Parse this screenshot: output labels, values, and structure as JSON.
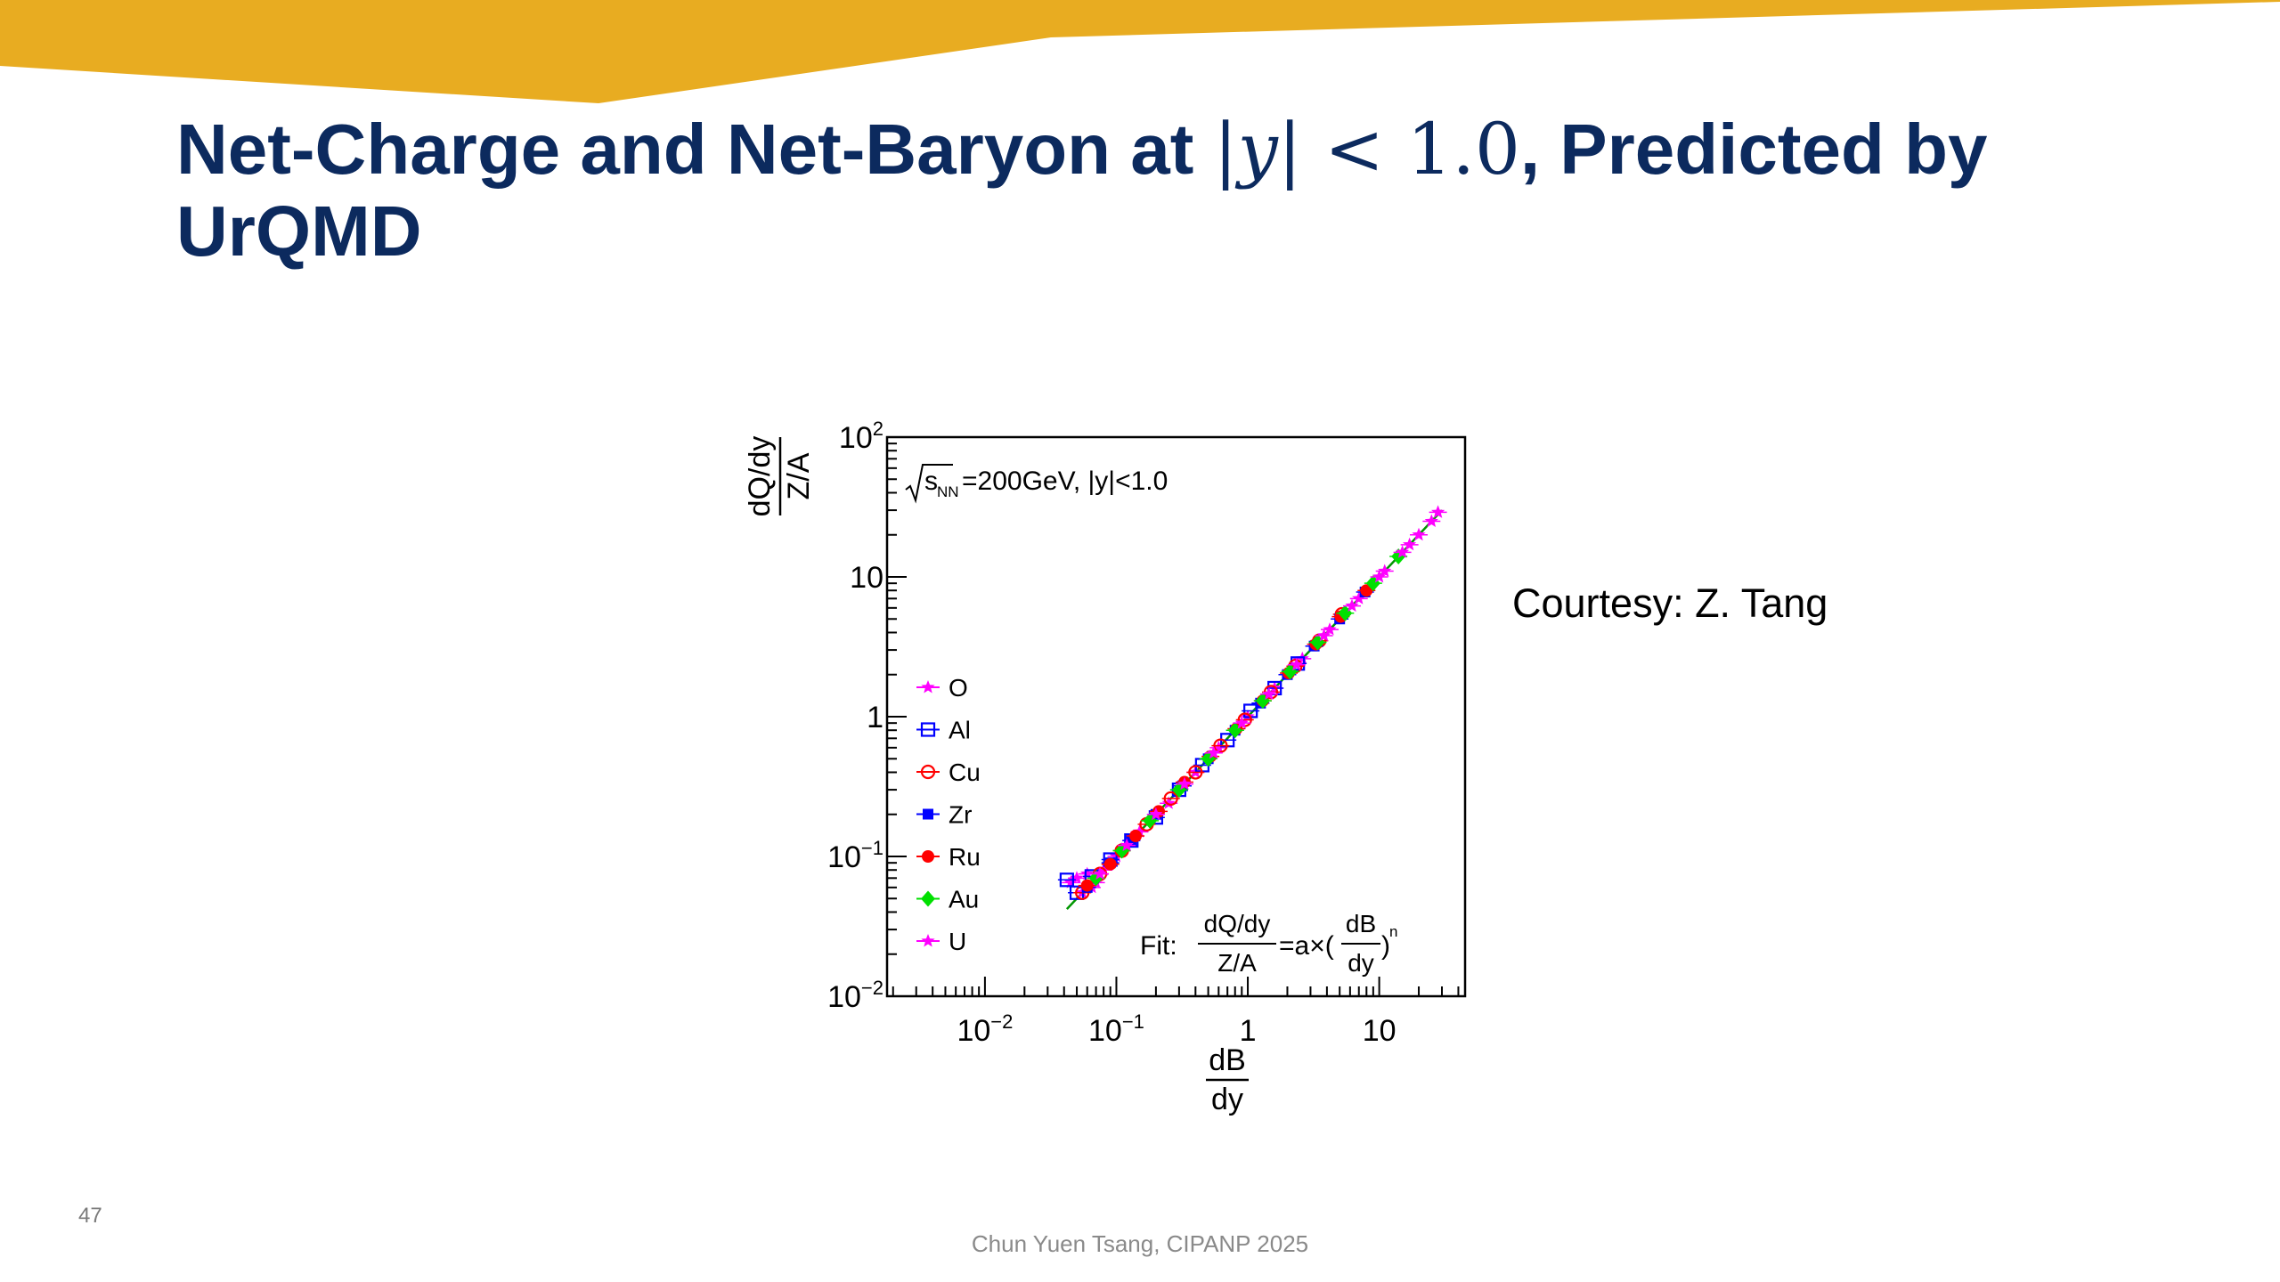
{
  "slide": {
    "title_part1": "Net-Charge and Net-Baryon at ",
    "title_math_open": "|",
    "title_math_var": "y",
    "title_math_close": "| < 1.0",
    "title_part2": ", Predicted by UrQMD",
    "courtesy": "Courtesy: Z. Tang",
    "page_number": "47",
    "footer": "Chun Yuen Tsang, CIPANP 2025",
    "banner_color": "#e8ac21",
    "title_color": "#0c2a5e"
  },
  "chart_data": {
    "type": "scatter",
    "x_scale": "log",
    "y_scale": "log",
    "xlim": [
      0.0018,
      45
    ],
    "ylim": [
      0.01,
      100
    ],
    "xlabel_num": "dB",
    "xlabel_den": "dy",
    "ylabel_num": "dQ/dy",
    "ylabel_den": "Z/A",
    "x_ticks": [
      {
        "value": 0.01,
        "base": "10",
        "exp": "−2"
      },
      {
        "value": 0.1,
        "base": "10",
        "exp": "−1"
      },
      {
        "value": 1,
        "base": "1",
        "exp": ""
      },
      {
        "value": 10,
        "base": "10",
        "exp": ""
      }
    ],
    "y_ticks": [
      {
        "value": 0.01,
        "base": "10",
        "exp": "−2"
      },
      {
        "value": 0.1,
        "base": "10",
        "exp": "−1"
      },
      {
        "value": 1,
        "base": "1",
        "exp": ""
      },
      {
        "value": 10,
        "base": "10",
        "exp": ""
      },
      {
        "value": 100,
        "base": "10",
        "exp": "2"
      }
    ],
    "annotation": {
      "sqrt": "s",
      "sub": "NN",
      "text": "=200GeV, |y|<1.0"
    },
    "fit_label": {
      "prefix": "Fit: ",
      "num1": "dQ/dy",
      "den1": "Z/A",
      "mid": "=a×(",
      "num2": "dB",
      "den2": "dy",
      "close": ")",
      "exp": "n"
    },
    "fit": {
      "a": 1.0,
      "n": 1.0,
      "x_range": [
        0.042,
        30
      ],
      "color": "#009600"
    },
    "legend_position": "left",
    "series": [
      {
        "name": "O",
        "color": "#ff00ff",
        "marker": "star",
        "x": [
          0.045,
          0.05,
          0.055,
          0.06,
          0.065,
          0.07,
          0.08,
          0.1,
          0.15,
          0.25,
          0.4,
          0.6,
          1.0,
          1.6,
          2.6,
          4.2,
          7.0,
          11,
          17,
          25
        ],
        "y": [
          0.065,
          0.07,
          0.055,
          0.075,
          0.06,
          0.065,
          0.08,
          0.1,
          0.15,
          0.24,
          0.4,
          0.6,
          1.0,
          1.6,
          2.6,
          4.2,
          7.0,
          11,
          17,
          25
        ]
      },
      {
        "name": "Al",
        "color": "#0000ff",
        "marker": "open-square",
        "x": [
          0.042,
          0.05,
          0.065,
          0.09,
          0.13,
          0.2,
          0.3,
          0.45,
          0.7,
          1.05,
          1.6,
          2.4
        ],
        "y": [
          0.068,
          0.055,
          0.072,
          0.095,
          0.13,
          0.19,
          0.3,
          0.45,
          0.68,
          1.1,
          1.6,
          2.4
        ]
      },
      {
        "name": "Cu",
        "color": "#ff0000",
        "marker": "open-circle",
        "x": [
          0.055,
          0.075,
          0.11,
          0.17,
          0.26,
          0.4,
          0.62,
          0.95,
          1.5,
          2.3,
          3.5,
          5.2
        ],
        "y": [
          0.055,
          0.075,
          0.11,
          0.17,
          0.26,
          0.4,
          0.62,
          0.95,
          1.5,
          2.3,
          3.5,
          5.4
        ]
      },
      {
        "name": "Zr",
        "color": "#0000ff",
        "marker": "filled-square",
        "x": [
          0.06,
          0.09,
          0.13,
          0.2,
          0.32,
          0.5,
          0.8,
          1.25,
          2.0,
          3.2,
          5.0,
          7.8
        ],
        "y": [
          0.06,
          0.09,
          0.13,
          0.2,
          0.32,
          0.5,
          0.8,
          1.25,
          2.0,
          3.2,
          5.0,
          7.8
        ]
      },
      {
        "name": "Ru",
        "color": "#ff0000",
        "marker": "filled-circle",
        "x": [
          0.06,
          0.09,
          0.14,
          0.21,
          0.33,
          0.52,
          0.82,
          1.3,
          2.05,
          3.3,
          5.1,
          8.0
        ],
        "y": [
          0.062,
          0.088,
          0.14,
          0.21,
          0.34,
          0.52,
          0.82,
          1.3,
          2.05,
          3.3,
          5.2,
          8.0
        ]
      },
      {
        "name": "Au",
        "color": "#00e000",
        "marker": "filled-diamond",
        "x": [
          0.07,
          0.11,
          0.18,
          0.3,
          0.5,
          0.8,
          1.3,
          2.1,
          3.4,
          5.5,
          9.0,
          14
        ],
        "y": [
          0.07,
          0.11,
          0.18,
          0.3,
          0.5,
          0.8,
          1.3,
          2.1,
          3.4,
          5.5,
          9.0,
          14
        ]
      },
      {
        "name": "U",
        "color": "#ff00ff",
        "marker": "star",
        "x": [
          0.075,
          0.12,
          0.2,
          0.33,
          0.55,
          0.9,
          1.45,
          2.35,
          3.8,
          6.2,
          10,
          15,
          20,
          28
        ],
        "y": [
          0.075,
          0.12,
          0.2,
          0.33,
          0.55,
          0.9,
          1.45,
          2.35,
          3.8,
          6.2,
          10,
          15,
          20,
          29
        ]
      }
    ]
  }
}
